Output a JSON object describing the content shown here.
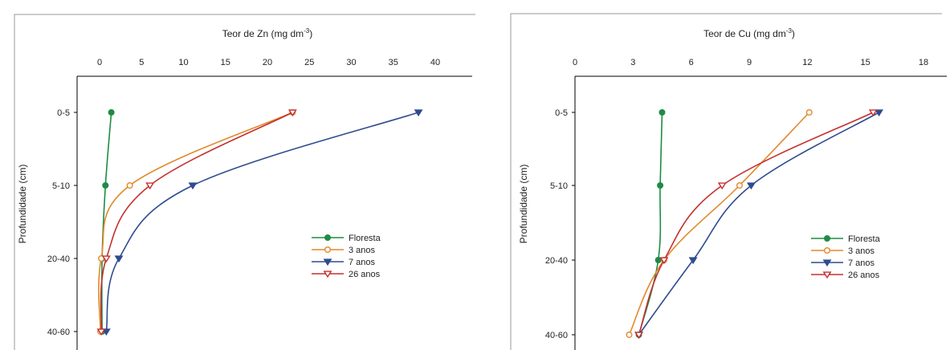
{
  "chart_data": [
    {
      "type": "line",
      "title": "",
      "xlabel": "Teor de Zn (mg dm-3)",
      "xlabel_main": "Teor de Zn (mg dm",
      "xlabel_sup": "-3",
      "xlabel_end": ")",
      "ylabel": "Profundidade (cm)",
      "x_axis_position": "top",
      "xlim": [
        0,
        40
      ],
      "xticks": [
        0,
        5,
        10,
        15,
        20,
        25,
        30,
        35,
        40
      ],
      "categories": [
        "0-5",
        "5-10",
        "20-40",
        "40-60"
      ],
      "grid": false,
      "legend_position": "center-right",
      "series": [
        {
          "name": "Floresta",
          "values": [
            1.4,
            0.7,
            0.3,
            0.3
          ],
          "color": "#1e8c45",
          "marker": "filled-circle"
        },
        {
          "name": "3 anos",
          "values": [
            23.0,
            3.6,
            0.2,
            0.1
          ],
          "color": "#e08a2a",
          "marker": "open-circle"
        },
        {
          "name": "7 anos",
          "values": [
            38.0,
            11.1,
            2.3,
            0.8
          ],
          "color": "#2e4c8e",
          "marker": "filled-triangle-down"
        },
        {
          "name": "26 anos",
          "values": [
            23.0,
            6.0,
            0.8,
            0.2
          ],
          "color": "#c4302f",
          "marker": "open-triangle-down"
        }
      ]
    },
    {
      "type": "line",
      "title": "",
      "xlabel": "Teor de Cu (mg dm-3)",
      "xlabel_main": "Teor de Cu (mg dm",
      "xlabel_sup": "-3",
      "xlabel_end": ")",
      "ylabel": "Profundidade (cm)",
      "x_axis_position": "top",
      "xlim": [
        0,
        18
      ],
      "xticks": [
        0,
        3,
        6,
        9,
        12,
        15,
        18
      ],
      "categories": [
        "0-5",
        "5-10",
        "20-40",
        "40-60"
      ],
      "grid": false,
      "legend_position": "center-right",
      "series": [
        {
          "name": "Floresta",
          "values": [
            4.5,
            4.4,
            4.3,
            3.3
          ],
          "color": "#1e8c45",
          "marker": "filled-circle"
        },
        {
          "name": "3 anos",
          "values": [
            12.1,
            8.5,
            4.6,
            2.8
          ],
          "color": "#e08a2a",
          "marker": "open-circle"
        },
        {
          "name": "7 anos",
          "values": [
            15.7,
            9.1,
            6.1,
            3.3
          ],
          "color": "#2e4c8e",
          "marker": "filled-triangle-down"
        },
        {
          "name": "26 anos",
          "values": [
            15.4,
            7.6,
            4.6,
            3.3
          ],
          "color": "#c4302f",
          "marker": "open-triangle-down"
        }
      ]
    }
  ]
}
